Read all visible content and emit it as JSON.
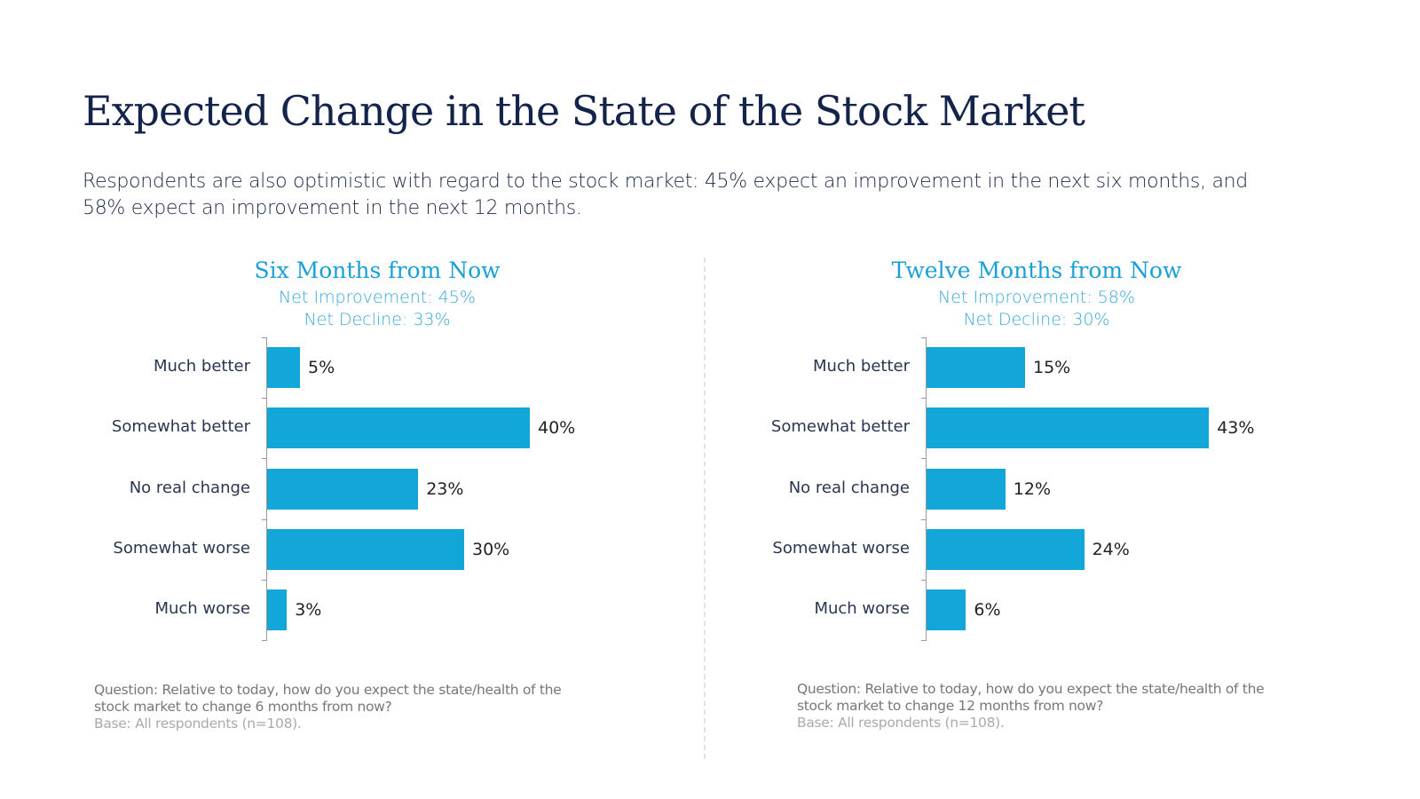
{
  "title": "Expected Change in the State of the Stock Market",
  "subtitle": "Respondents are also optimistic with regard to the stock market: 45% expect an improvement in the next six months, and 58% expect an improvement in the next 12 months.",
  "colors": {
    "bar": "#13a6d9",
    "title": "#13234a",
    "accent": "#1aa0d6"
  },
  "chart_data": [
    {
      "type": "bar",
      "orientation": "horizontal",
      "title": "Six Months from Now",
      "stats": [
        "Net Improvement: 45%",
        "Net Decline: 33%"
      ],
      "categories": [
        "Much better",
        "Somewhat better",
        "No real change",
        "Somewhat worse",
        "Much worse"
      ],
      "values": [
        5,
        40,
        23,
        30,
        3
      ],
      "labels": [
        "5%",
        "40%",
        "23%",
        "30%",
        "3%"
      ],
      "xlim": [
        0,
        45
      ],
      "grid": false,
      "question": "Question: Relative to today, how do you expect the state/health of the stock market to change 6 months from now?",
      "base": "Base: All respondents (n=108)."
    },
    {
      "type": "bar",
      "orientation": "horizontal",
      "title": "Twelve Months from Now",
      "stats": [
        "Net Improvement: 58%",
        "Net Decline: 30%"
      ],
      "categories": [
        "Much better",
        "Somewhat better",
        "No real change",
        "Somewhat worse",
        "Much worse"
      ],
      "values": [
        15,
        43,
        12,
        24,
        6
      ],
      "labels": [
        "15%",
        "43%",
        "12%",
        "24%",
        "6%"
      ],
      "xlim": [
        0,
        45
      ],
      "grid": false,
      "question": "Question: Relative to today, how do you expect the state/health of the stock market to change 12 months from now?",
      "base": "Base: All respondents (n=108)."
    }
  ]
}
